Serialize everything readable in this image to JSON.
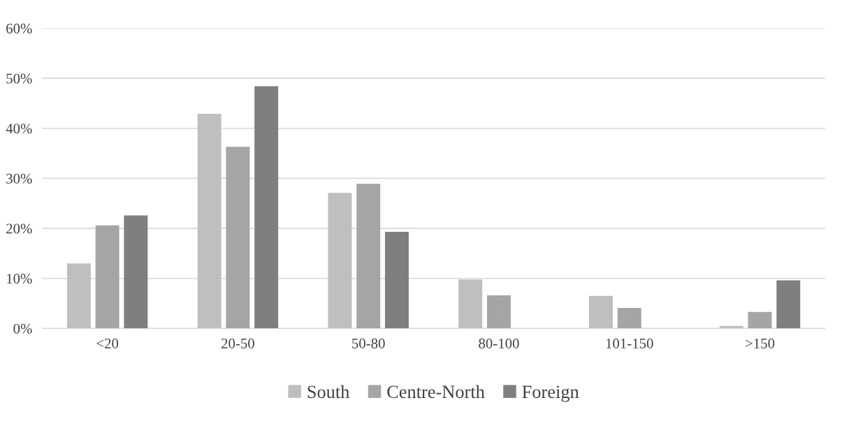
{
  "chart_data": {
    "type": "bar",
    "categories": [
      "<20",
      "20-50",
      "50-80",
      "80-100",
      "101-150",
      ">150"
    ],
    "series": [
      {
        "name": "South",
        "color": "#bfbfbf",
        "values": [
          13.0,
          42.9,
          27.1,
          9.8,
          6.5,
          0.5
        ]
      },
      {
        "name": "Centre-North",
        "color": "#a5a5a5",
        "values": [
          20.6,
          36.3,
          28.9,
          6.6,
          4.1,
          3.3
        ]
      },
      {
        "name": "Foreign",
        "color": "#7f7f7f",
        "values": [
          22.6,
          48.4,
          19.3,
          0,
          0,
          9.6
        ]
      }
    ],
    "ylim": [
      0,
      60
    ],
    "yticks": [
      {
        "value": 0,
        "label": "0%"
      },
      {
        "value": 10,
        "label": "10%"
      },
      {
        "value": 20,
        "label": "20%"
      },
      {
        "value": 30,
        "label": "30%"
      },
      {
        "value": 40,
        "label": "40%"
      },
      {
        "value": 50,
        "label": "50%"
      },
      {
        "value": 60,
        "label": "60%"
      }
    ],
    "grid": "y",
    "legend": "bottom"
  }
}
